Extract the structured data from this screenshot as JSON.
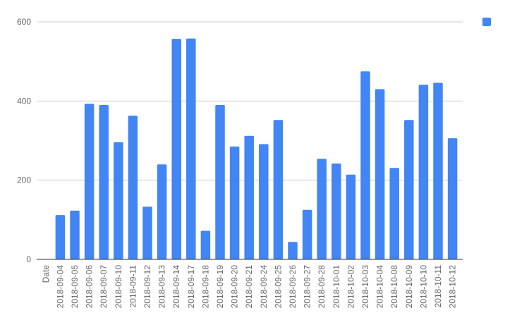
{
  "chart_data": {
    "type": "bar",
    "categories": [
      "Date",
      "2018-09-04",
      "2018-09-05",
      "2018-09-06",
      "2018-09-07",
      "2018-09-10",
      "2018-09-11",
      "2018-09-12",
      "2018-09-13",
      "2018-09-14",
      "2018-09-17",
      "2018-09-18",
      "2018-09-19",
      "2018-09-20",
      "2018-09-21",
      "2018-09-24",
      "2018-09-25",
      "2018-09-26",
      "2018-09-27",
      "2018-09-28",
      "2018-10-01",
      "2018-10-02",
      "2018-10-03",
      "2018-10-04",
      "2018-10-08",
      "2018-10-09",
      "2018-10-10",
      "2018-10-11",
      "2018-10-12"
    ],
    "values": [
      null,
      112,
      123,
      393,
      390,
      296,
      363,
      133,
      240,
      557,
      558,
      72,
      390,
      285,
      312,
      291,
      352,
      44,
      125,
      254,
      242,
      214,
      475,
      430,
      231,
      352,
      441,
      446,
      306
    ],
    "ylim": [
      0,
      600
    ],
    "yticks": [
      0,
      200,
      400,
      600
    ],
    "grid": true,
    "legend": "top-right",
    "color": "#4285f4"
  }
}
